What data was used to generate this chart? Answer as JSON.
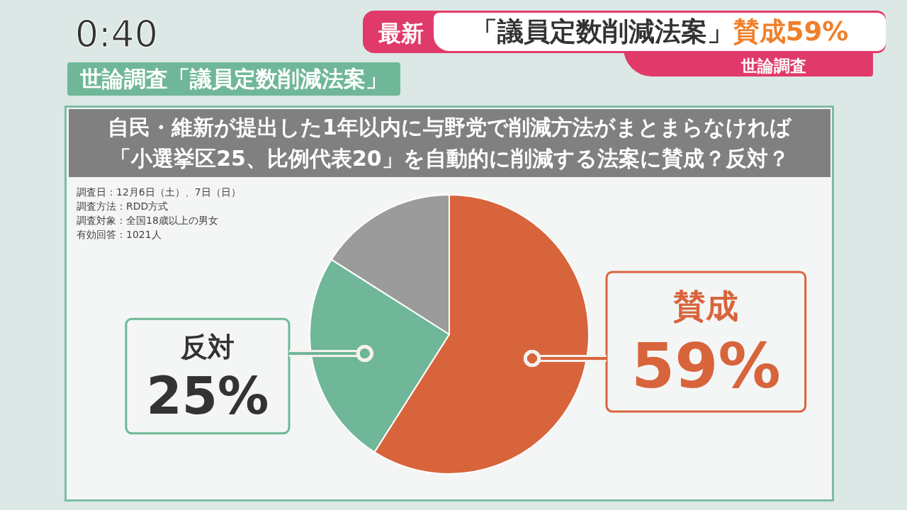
{
  "chart_data": {
    "type": "pie",
    "title": "世論調査「議員定数削減法案」",
    "subtitle": "自民・維新が提出した1年以内に与野党で削減方法がまとまらなければ「小選挙区25、比例代表20」を自動的に削減する法案に賛成？反対？",
    "categories": [
      "賛成",
      "反対",
      null
    ],
    "values": [
      59,
      25,
      16
    ],
    "colors": [
      "#d8643c",
      "#6fb798",
      "#9b9b9b"
    ],
    "value_labels": [
      "59%",
      "25%",
      null
    ],
    "annotations": [
      "0:40",
      "最新",
      "「議員定数削減法案」",
      "賛成59%",
      "世論調査",
      "調査日：12月6日（土）、7日（日）",
      "調査方法：RDD方式",
      "調査対象：全国18歳以上の男女",
      "有効回答：1021人"
    ]
  }
}
